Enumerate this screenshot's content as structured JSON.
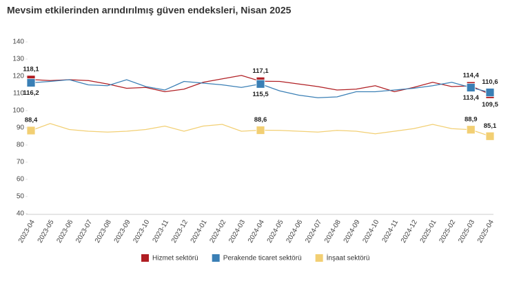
{
  "chart_data": {
    "type": "line",
    "title": "Mevsim etkilerinden arındırılmış güven endeksleri, Nisan 2025",
    "categories": [
      "2023-04",
      "2023-05",
      "2023-06",
      "2023-07",
      "2023-08",
      "2023-09",
      "2023-10",
      "2023-11",
      "2023-12",
      "2024-01",
      "2024-02",
      "2024-03",
      "2024-04",
      "2024-05",
      "2024-06",
      "2024-07",
      "2024-08",
      "2024-09",
      "2024-10",
      "2024-11",
      "2024-12",
      "2025-01",
      "2025-02",
      "2025-03",
      "2025-04"
    ],
    "series": [
      {
        "name": "Hizmet sektörü",
        "color": "#b01e23",
        "values": [
          118.1,
          117.5,
          118,
          117.5,
          115.5,
          113,
          113.5,
          111,
          112.5,
          116.5,
          118.5,
          120.5,
          117.1,
          117,
          115.5,
          114,
          112,
          112.5,
          114.5,
          111,
          113.5,
          116.5,
          114,
          114.4,
          109.5
        ],
        "value_labels": [
          "118,1",
          null,
          null,
          null,
          null,
          null,
          null,
          null,
          null,
          null,
          null,
          null,
          "117,1",
          null,
          null,
          null,
          null,
          null,
          null,
          null,
          null,
          null,
          null,
          "114,4",
          "109,5"
        ]
      },
      {
        "name": "Perakende ticaret sektörü",
        "color": "#3a7fb5",
        "values": [
          116.2,
          117,
          118,
          115,
          114.5,
          118,
          114,
          112,
          117,
          116,
          115,
          113.5,
          115.5,
          111.5,
          109,
          107.5,
          108,
          111,
          111,
          112,
          113,
          114.5,
          116.5,
          113.4,
          110.6
        ],
        "value_labels": [
          "116,2",
          null,
          null,
          null,
          null,
          null,
          null,
          null,
          null,
          null,
          null,
          null,
          "115,5",
          null,
          null,
          null,
          null,
          null,
          null,
          null,
          null,
          null,
          null,
          "113,4",
          "110,6"
        ]
      },
      {
        "name": "İnşaat sektörü",
        "color": "#f2cf73",
        "values": [
          88.4,
          92.5,
          89,
          88,
          87.5,
          88,
          89,
          91,
          88,
          91,
          92,
          88,
          88.6,
          88.5,
          88,
          87.5,
          88.5,
          88,
          86.5,
          88,
          89.5,
          92,
          89.5,
          88.9,
          85.1
        ],
        "value_labels": [
          "88,4",
          null,
          null,
          null,
          null,
          null,
          null,
          null,
          null,
          null,
          null,
          null,
          "88,6",
          null,
          null,
          null,
          null,
          null,
          null,
          null,
          null,
          null,
          null,
          "88,9",
          "85,1"
        ]
      }
    ],
    "ylim": [
      40,
      140
    ],
    "yticks": [
      40,
      50,
      60,
      70,
      80,
      90,
      100,
      110,
      120,
      130,
      140
    ],
    "grid": false,
    "legend": "bottom"
  }
}
